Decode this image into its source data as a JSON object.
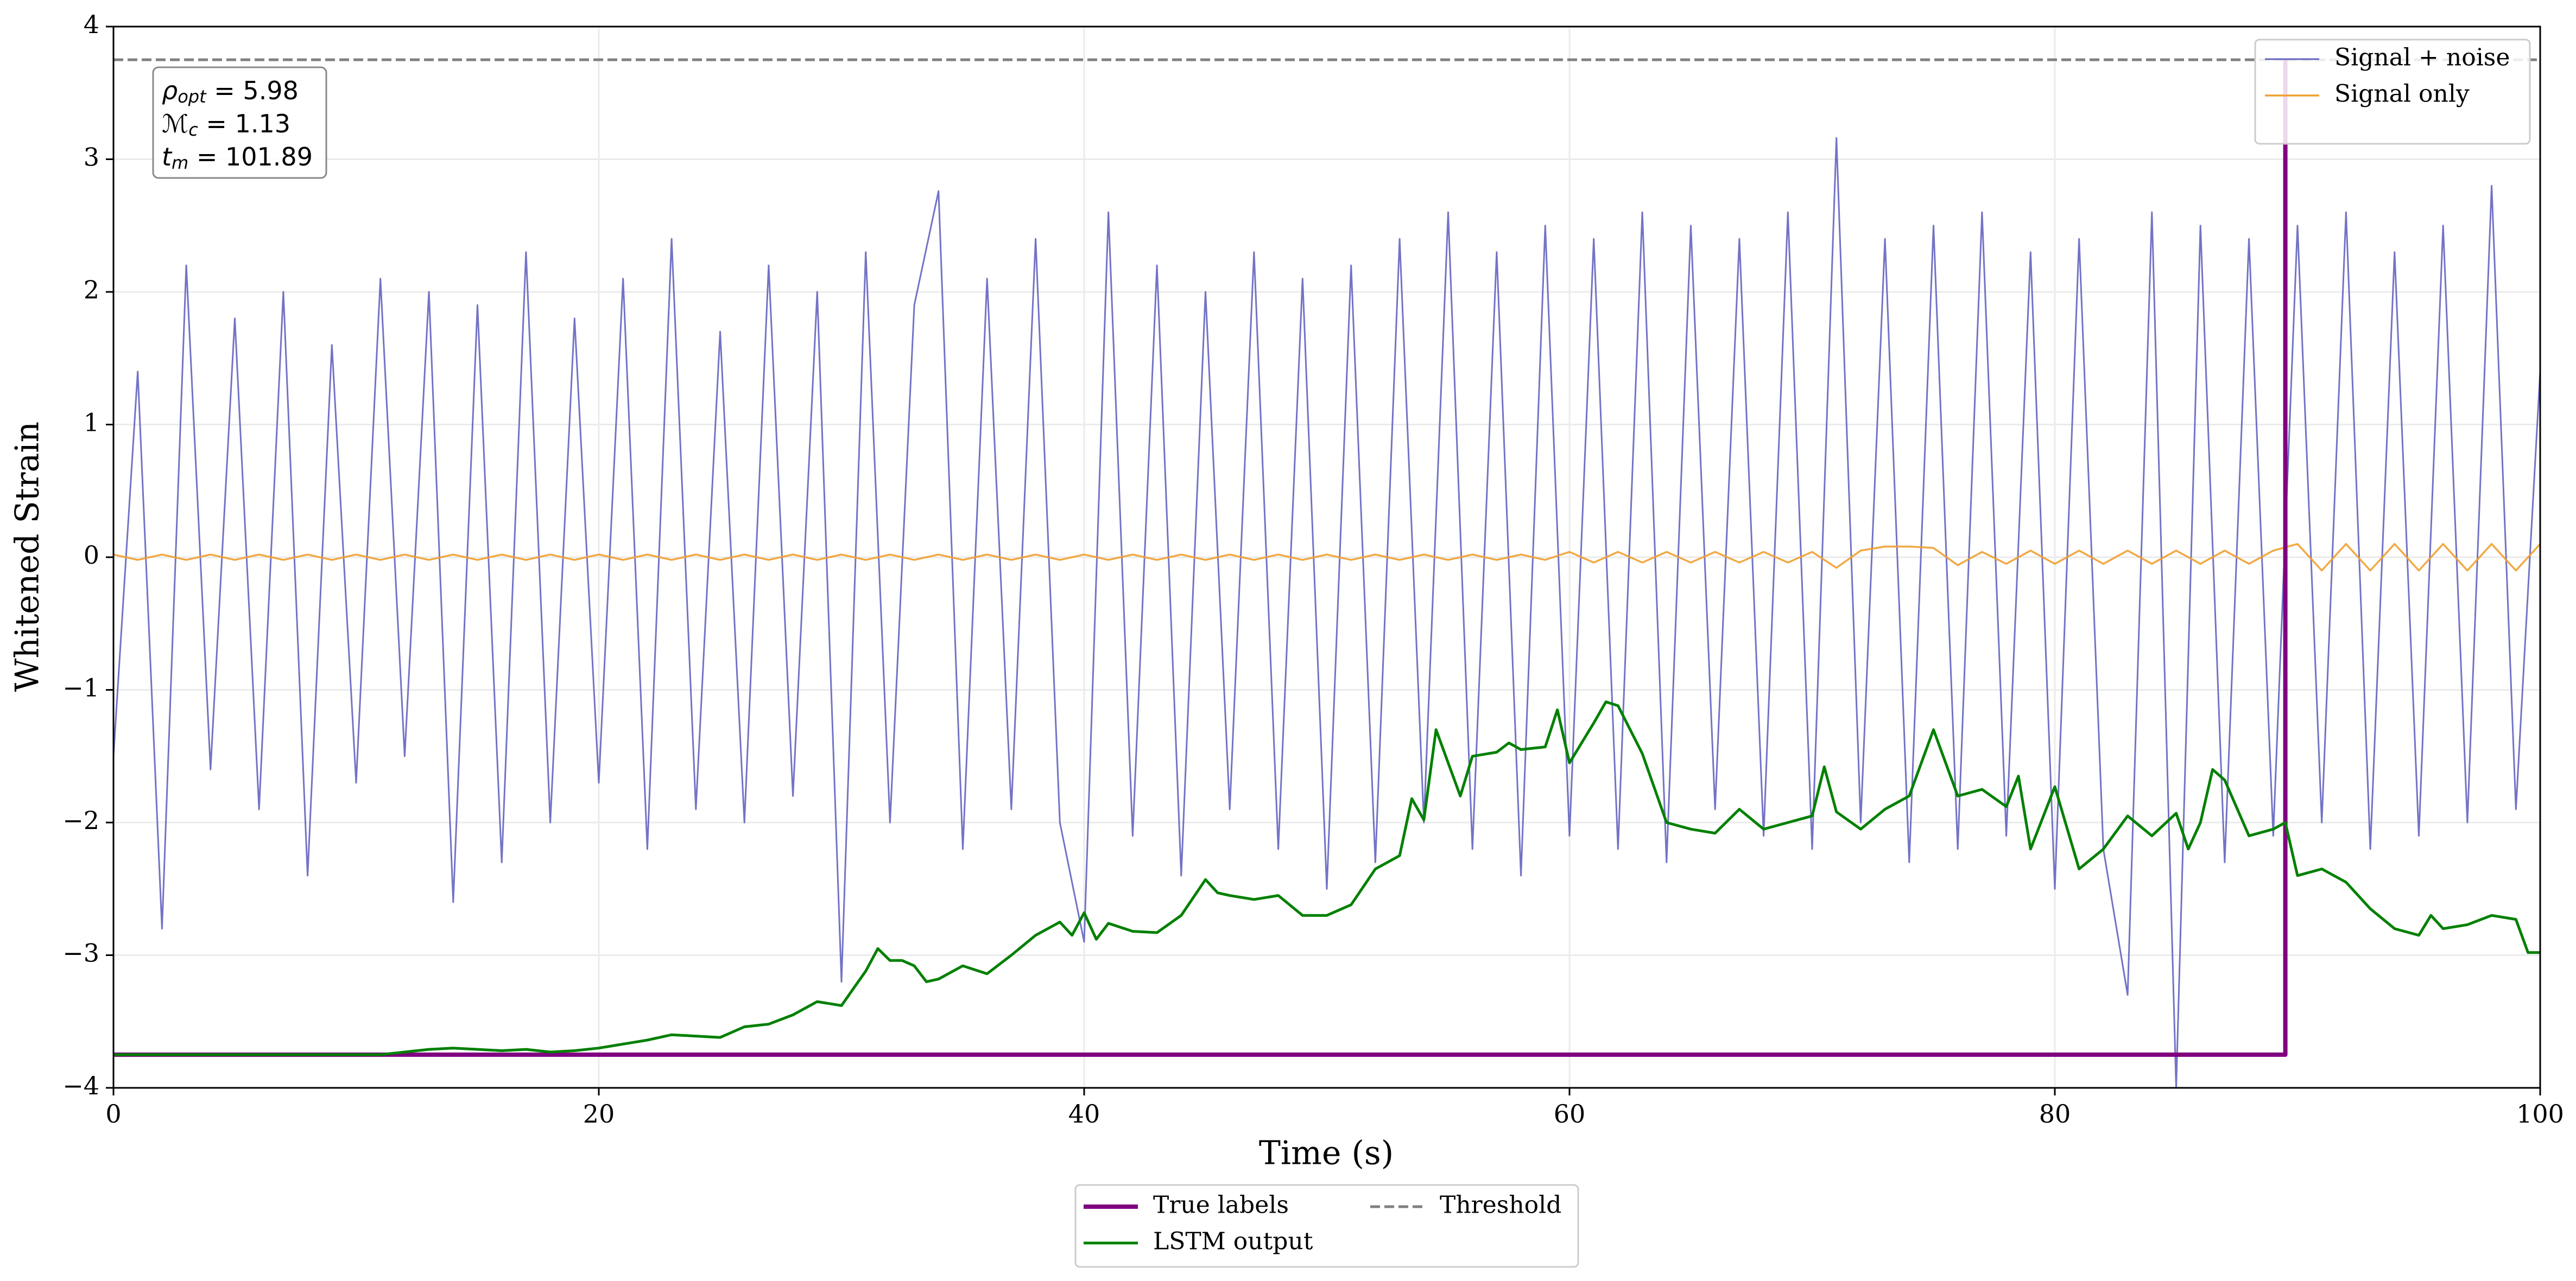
{
  "chart_data": {
    "type": "line",
    "xlabel": "Time (s)",
    "ylabel": "Whitened Strain",
    "xlim": [
      0,
      100
    ],
    "ylim": [
      -4,
      4
    ],
    "xticks": [
      0,
      20,
      40,
      60,
      80,
      100
    ],
    "yticks": [
      {
        "value": -4,
        "label": "−4"
      },
      {
        "value": -3,
        "label": "−3"
      },
      {
        "value": -2,
        "label": "−2"
      },
      {
        "value": -1,
        "label": "−1"
      },
      0,
      1,
      2,
      3,
      4
    ],
    "grid": true,
    "annotation": [
      {
        "symbol": "ρ",
        "sub": "opt",
        "text": " = 5.98"
      },
      {
        "symbol": "ℳ",
        "sub": "c",
        "text": " = 1.13"
      },
      {
        "symbol": "t",
        "sub": "m",
        "text": " = 101.89"
      }
    ],
    "series": [
      {
        "name": "Signal + noise",
        "color": "#6464c0",
        "legend": "upper right",
        "x": [
          0,
          1,
          2,
          3,
          4,
          5,
          6,
          7,
          8,
          9,
          10,
          11,
          12,
          13,
          14,
          15,
          16,
          17,
          18,
          19,
          20,
          21,
          22,
          23,
          24,
          25,
          26,
          27,
          28,
          29,
          30,
          31,
          32,
          33,
          34,
          35,
          36,
          37,
          38,
          39,
          40,
          41,
          42,
          43,
          44,
          45,
          46,
          47,
          48,
          49,
          50,
          51,
          52,
          53,
          54,
          55,
          56,
          57,
          58,
          59,
          60,
          61,
          62,
          63,
          64,
          65,
          66,
          67,
          68,
          69,
          70,
          71,
          72,
          73,
          74,
          75,
          76,
          77,
          78,
          79,
          80,
          81,
          82,
          83,
          84,
          85,
          86,
          87,
          88,
          89,
          90,
          91,
          92,
          93,
          94,
          95,
          96,
          97,
          98,
          99,
          100
        ],
        "values": [
          -1.5,
          1.4,
          -2.8,
          2.2,
          -1.6,
          1.8,
          -1.9,
          2.0,
          -2.4,
          1.6,
          -1.7,
          2.1,
          -1.5,
          2.0,
          -2.6,
          1.9,
          -2.3,
          2.3,
          -2.0,
          1.8,
          -1.7,
          2.1,
          -2.2,
          2.4,
          -1.9,
          1.7,
          -2.0,
          2.2,
          -1.8,
          2.0,
          -3.2,
          2.3,
          -2.0,
          1.9,
          2.76,
          -2.2,
          2.1,
          -1.9,
          2.4,
          -2.0,
          -2.9,
          2.6,
          -2.1,
          2.2,
          -2.4,
          2.0,
          -1.9,
          2.3,
          -2.2,
          2.1,
          -2.5,
          2.2,
          -2.3,
          2.4,
          -2.0,
          2.6,
          -2.2,
          2.3,
          -2.4,
          2.5,
          -2.1,
          2.4,
          -2.2,
          2.6,
          -2.3,
          2.5,
          -1.9,
          2.4,
          -2.1,
          2.6,
          -2.2,
          3.16,
          -2.0,
          2.4,
          -2.3,
          2.5,
          -2.2,
          2.6,
          -2.1,
          2.3,
          -2.5,
          2.4,
          -2.2,
          -3.3,
          2.6,
          -4.0,
          2.5,
          -2.3,
          2.4,
          -2.1,
          2.5,
          -2.0,
          2.6,
          -2.2,
          2.3,
          -2.1,
          2.5,
          -2.0,
          2.8,
          -1.9,
          1.4
        ]
      },
      {
        "name": "Signal only",
        "color": "#f0a030",
        "legend": "upper right",
        "x": [
          0,
          1,
          2,
          3,
          4,
          5,
          6,
          7,
          8,
          9,
          10,
          11,
          12,
          13,
          14,
          15,
          16,
          17,
          18,
          19,
          20,
          21,
          22,
          23,
          24,
          25,
          26,
          27,
          28,
          29,
          30,
          31,
          32,
          33,
          34,
          35,
          36,
          37,
          38,
          39,
          40,
          41,
          42,
          43,
          44,
          45,
          46,
          47,
          48,
          49,
          50,
          51,
          52,
          53,
          54,
          55,
          56,
          57,
          58,
          59,
          60,
          61,
          62,
          63,
          64,
          65,
          66,
          67,
          68,
          69,
          70,
          71,
          72,
          73,
          74,
          75,
          76,
          77,
          78,
          79,
          80,
          81,
          82,
          83,
          84,
          85,
          86,
          87,
          88,
          89,
          90,
          91,
          92,
          93,
          94,
          95,
          96,
          97,
          98,
          99,
          100
        ],
        "values": [
          0.02,
          -0.02,
          0.02,
          -0.02,
          0.02,
          -0.02,
          0.02,
          -0.02,
          0.02,
          -0.02,
          0.02,
          -0.02,
          0.02,
          -0.02,
          0.02,
          -0.02,
          0.02,
          -0.02,
          0.02,
          -0.02,
          0.02,
          -0.02,
          0.02,
          -0.02,
          0.02,
          -0.02,
          0.02,
          -0.02,
          0.02,
          -0.02,
          0.02,
          -0.02,
          0.02,
          -0.02,
          0.02,
          -0.02,
          0.02,
          -0.02,
          0.02,
          -0.02,
          0.02,
          -0.02,
          0.02,
          -0.02,
          0.02,
          -0.02,
          0.02,
          -0.02,
          0.02,
          -0.02,
          0.02,
          -0.02,
          0.02,
          -0.02,
          0.02,
          -0.02,
          0.02,
          -0.02,
          0.02,
          -0.02,
          0.04,
          -0.04,
          0.04,
          -0.04,
          0.04,
          -0.04,
          0.04,
          -0.04,
          0.04,
          -0.04,
          0.04,
          -0.08,
          0.05,
          0.08,
          0.08,
          0.07,
          -0.06,
          0.04,
          -0.05,
          0.05,
          -0.05,
          0.05,
          -0.05,
          0.05,
          -0.05,
          0.05,
          -0.05,
          0.05,
          -0.05,
          0.05,
          0.1,
          -0.1,
          0.1,
          -0.1,
          0.1,
          -0.1,
          0.1,
          -0.1,
          0.1,
          -0.1,
          0.1
        ]
      },
      {
        "name": "True labels",
        "color": "#800080",
        "legend": "lower center",
        "x": [
          0,
          89.5,
          89.5
        ],
        "values": [
          -3.75,
          -3.75,
          3.75
        ]
      },
      {
        "name": "LSTM output",
        "color": "#008000",
        "legend": "lower center",
        "x": [
          0,
          11,
          12,
          13,
          14,
          15,
          16,
          17,
          18,
          19,
          20,
          21,
          22,
          23,
          24,
          25,
          26,
          27,
          28,
          29,
          30,
          30.5,
          31,
          31.5,
          32,
          32.5,
          33,
          33.5,
          34,
          35,
          36,
          37,
          38,
          39,
          39.5,
          40,
          40.5,
          41,
          42,
          43,
          44,
          45,
          45.5,
          46,
          47,
          48,
          49,
          50,
          51,
          52,
          53,
          53.5,
          54,
          54.5,
          55,
          55.5,
          56,
          57,
          57.5,
          58,
          59,
          59.5,
          60,
          61,
          61.5,
          62,
          63,
          64,
          65,
          66,
          67,
          68,
          69,
          70,
          70.5,
          71,
          72,
          73,
          74,
          75,
          76,
          77,
          78,
          78.5,
          79,
          80,
          81,
          82,
          83,
          84,
          85,
          85.5,
          86,
          86.5,
          87,
          88,
          89,
          89.5,
          90,
          91,
          92,
          93,
          94,
          95,
          95.5,
          96,
          97,
          98,
          99,
          99.5,
          100
        ],
        "values": [
          -3.75,
          -3.75,
          -3.73,
          -3.71,
          -3.7,
          -3.71,
          -3.72,
          -3.71,
          -3.73,
          -3.72,
          -3.7,
          -3.67,
          -3.64,
          -3.6,
          -3.61,
          -3.62,
          -3.54,
          -3.52,
          -3.45,
          -3.35,
          -3.38,
          -3.25,
          -3.12,
          -2.95,
          -3.04,
          -3.04,
          -3.08,
          -3.2,
          -3.18,
          -3.08,
          -3.14,
          -3.0,
          -2.85,
          -2.75,
          -2.85,
          -2.68,
          -2.88,
          -2.76,
          -2.82,
          -2.83,
          -2.7,
          -2.43,
          -2.53,
          -2.55,
          -2.58,
          -2.55,
          -2.7,
          -2.7,
          -2.62,
          -2.35,
          -2.25,
          -1.82,
          -1.98,
          -1.3,
          -1.55,
          -1.8,
          -1.5,
          -1.47,
          -1.4,
          -1.45,
          -1.43,
          -1.15,
          -1.55,
          -1.25,
          -1.09,
          -1.12,
          -1.48,
          -2.0,
          -2.05,
          -2.08,
          -1.9,
          -2.05,
          -2.0,
          -1.95,
          -1.58,
          -1.92,
          -2.05,
          -1.9,
          -1.8,
          -1.3,
          -1.8,
          -1.75,
          -1.88,
          -1.65,
          -2.2,
          -1.73,
          -2.35,
          -2.2,
          -1.95,
          -2.1,
          -1.93,
          -2.2,
          -2.0,
          -1.6,
          -1.68,
          -2.1,
          -2.05,
          -2.0,
          -2.4,
          -2.35,
          -2.45,
          -2.65,
          -2.8,
          -2.85,
          -2.7,
          -2.8,
          -2.77,
          -2.7,
          -2.73,
          -2.98,
          -2.98
        ]
      },
      {
        "name": "Threshold",
        "color": "#808080",
        "legend": "lower center",
        "dashed": true,
        "hline": 3.75
      }
    ]
  }
}
